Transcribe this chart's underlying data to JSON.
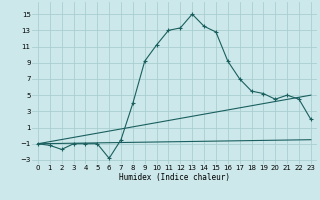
{
  "xlabel": "Humidex (Indice chaleur)",
  "bg_color": "#cce8ea",
  "grid_color": "#aacfd2",
  "line_color": "#1a5f5f",
  "xlim": [
    -0.5,
    23.5
  ],
  "ylim": [
    -3.5,
    16.5
  ],
  "xticks": [
    0,
    1,
    2,
    3,
    4,
    5,
    6,
    7,
    8,
    9,
    10,
    11,
    12,
    13,
    14,
    15,
    16,
    17,
    18,
    19,
    20,
    21,
    22,
    23
  ],
  "yticks": [
    -3,
    -1,
    1,
    3,
    5,
    7,
    9,
    11,
    13,
    15
  ],
  "curve1_x": [
    0,
    1,
    2,
    3,
    4,
    5,
    6,
    7,
    8,
    9,
    10,
    11,
    12,
    13,
    14,
    15,
    16,
    17,
    18,
    19,
    20,
    21,
    22,
    23
  ],
  "curve1_y": [
    -1,
    -1.2,
    -1.7,
    -1,
    -1,
    -1,
    -2.8,
    -0.5,
    4,
    9.2,
    11.2,
    13,
    13.3,
    15,
    13.5,
    12.8,
    9.2,
    7,
    5.5,
    5.2,
    4.5,
    5,
    4.5,
    2
  ],
  "curve2_x": [
    0,
    23
  ],
  "curve2_y": [
    -1,
    -0.5
  ],
  "curve3_x": [
    0,
    23
  ],
  "curve3_y": [
    -1,
    5.0
  ]
}
